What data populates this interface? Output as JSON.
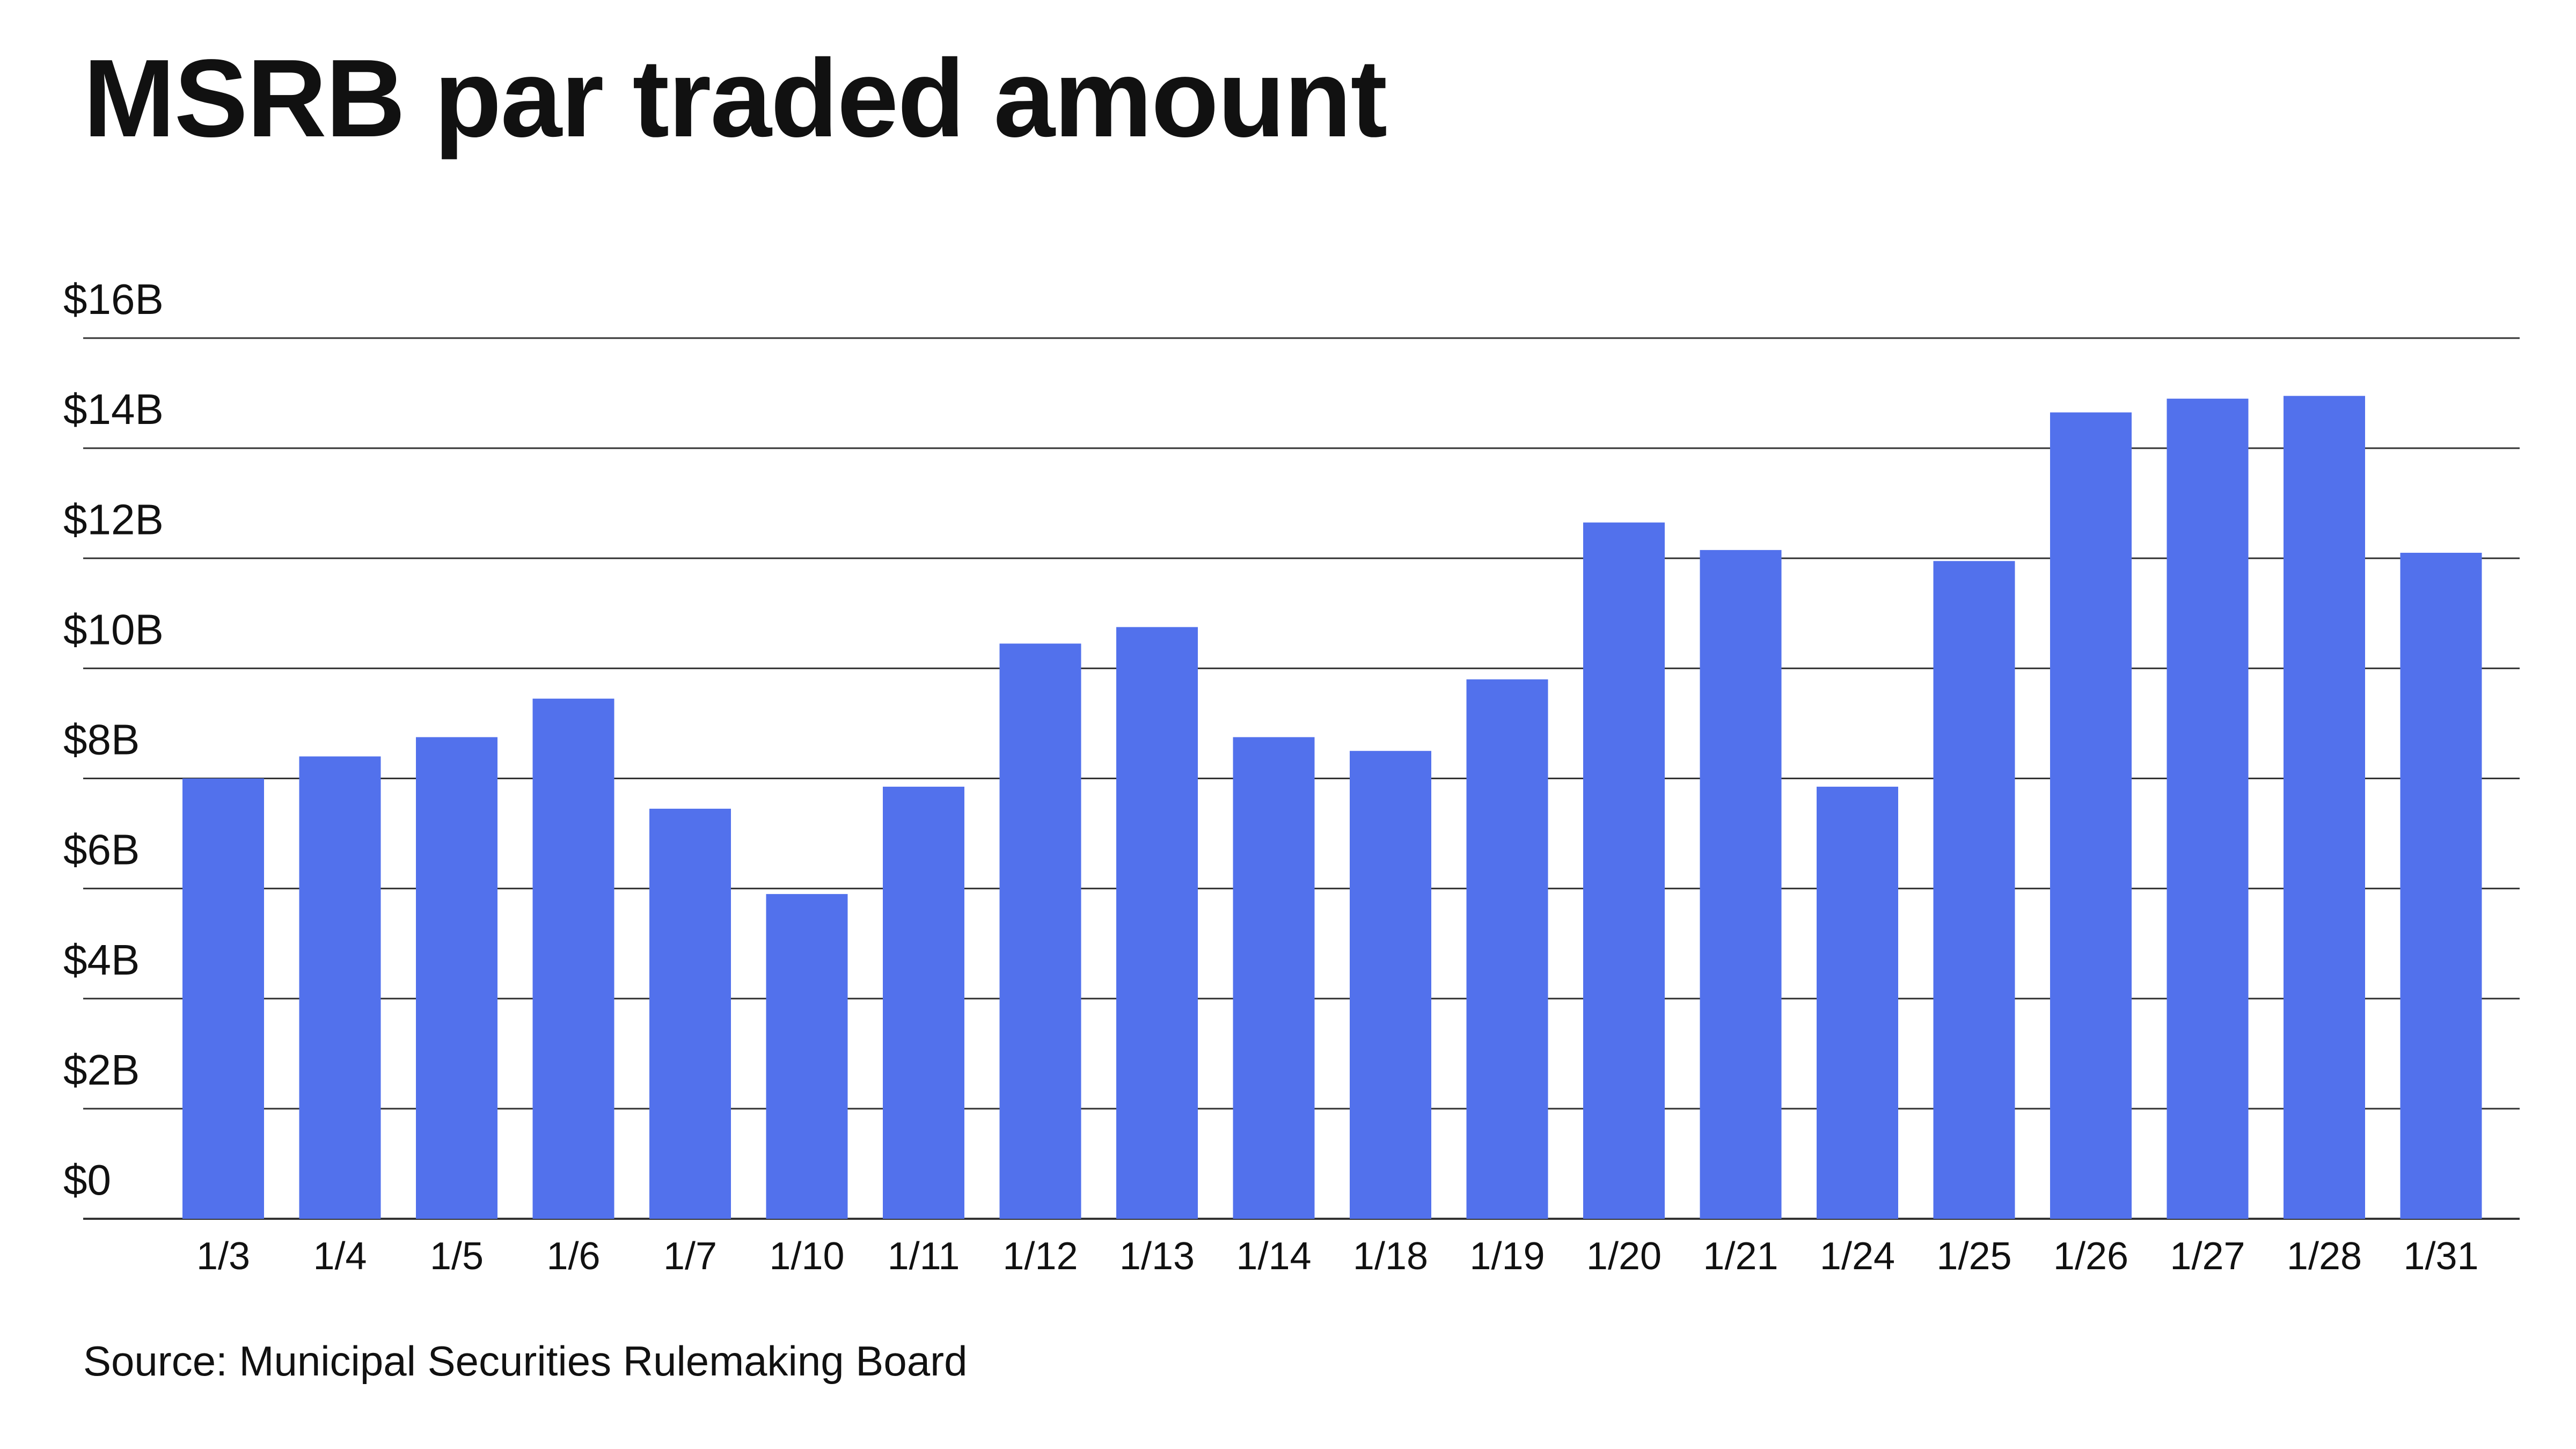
{
  "chart_data": {
    "type": "bar",
    "title": "MSRB par traded amount",
    "xlabel": "",
    "ylabel": "",
    "categories": [
      "1/3",
      "1/4",
      "1/5",
      "1/6",
      "1/7",
      "1/10",
      "1/11",
      "1/12",
      "1/13",
      "1/14",
      "1/18",
      "1/19",
      "1/20",
      "1/21",
      "1/24",
      "1/25",
      "1/26",
      "1/27",
      "1/28",
      "1/31"
    ],
    "values": [
      8.0,
      8.4,
      8.75,
      9.45,
      7.45,
      5.9,
      7.85,
      10.45,
      10.75,
      8.75,
      8.5,
      9.8,
      12.65,
      12.15,
      7.85,
      11.95,
      14.65,
      14.9,
      14.95,
      12.1
    ],
    "ylim": [
      0,
      16
    ],
    "yticks": [
      0,
      2,
      4,
      6,
      8,
      10,
      12,
      14,
      16
    ],
    "ytick_labels": [
      "$0",
      "$2B",
      "$4B",
      "$6B",
      "$8B",
      "$10B",
      "$12B",
      "$14B",
      "$16B"
    ],
    "units": "billions of dollars",
    "grid": true,
    "bar_color": "#5271ec",
    "gridline_color": "#333333"
  },
  "source": "Source: Municipal Securities Rulemaking Board"
}
